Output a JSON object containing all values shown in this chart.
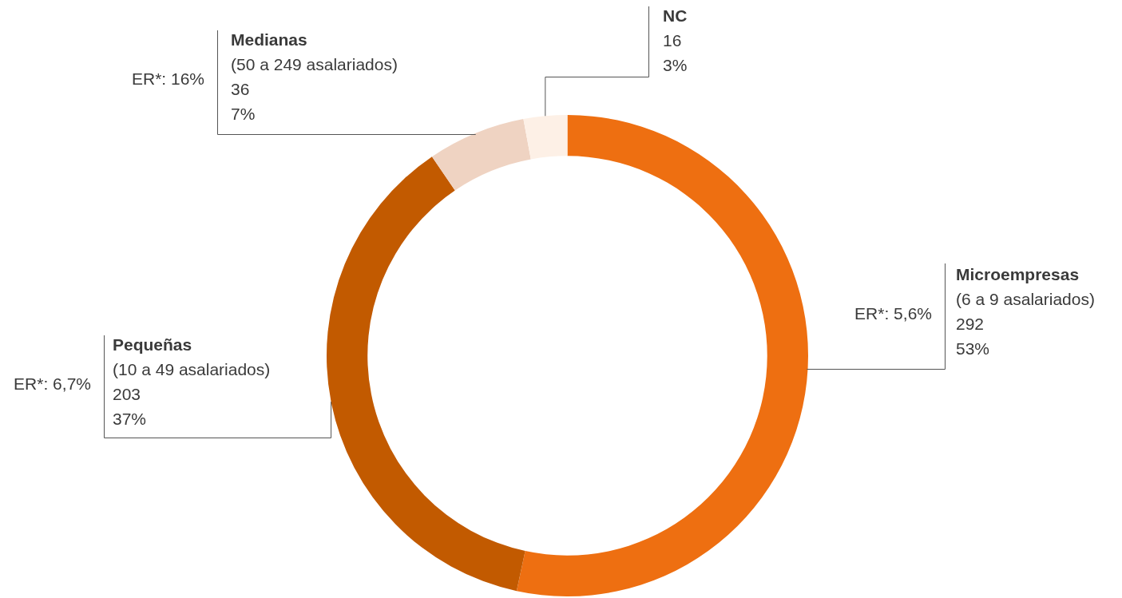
{
  "chart_data": {
    "type": "donut",
    "categories": [
      "Microempresas\n(6 a 9 asalariados)",
      "Pequeñas\n(10 a 49 asalariados)",
      "Medianas\n(50 a 249 asalariados)",
      "NC"
    ],
    "values": [
      292,
      203,
      36,
      16
    ],
    "colors": [
      "#ee6f11",
      "#c25a00",
      "#efd3c2",
      "#fdf0e6"
    ],
    "value_labels": [
      "292\n53%",
      "203\n37%",
      "36\n7%",
      "16\n3%"
    ],
    "annotations": [
      {
        "text": "ER*: 5,6%",
        "x": "Microempresas\n(6 a 9 asalariados)"
      },
      {
        "text": "ER*: 6,7%",
        "x": "Pequeñas\n(10 a 49 asalariados)"
      },
      {
        "text": "ER*: 16%",
        "x": "Medianas\n(50 a 249 asalariados)"
      }
    ],
    "legend": false
  }
}
